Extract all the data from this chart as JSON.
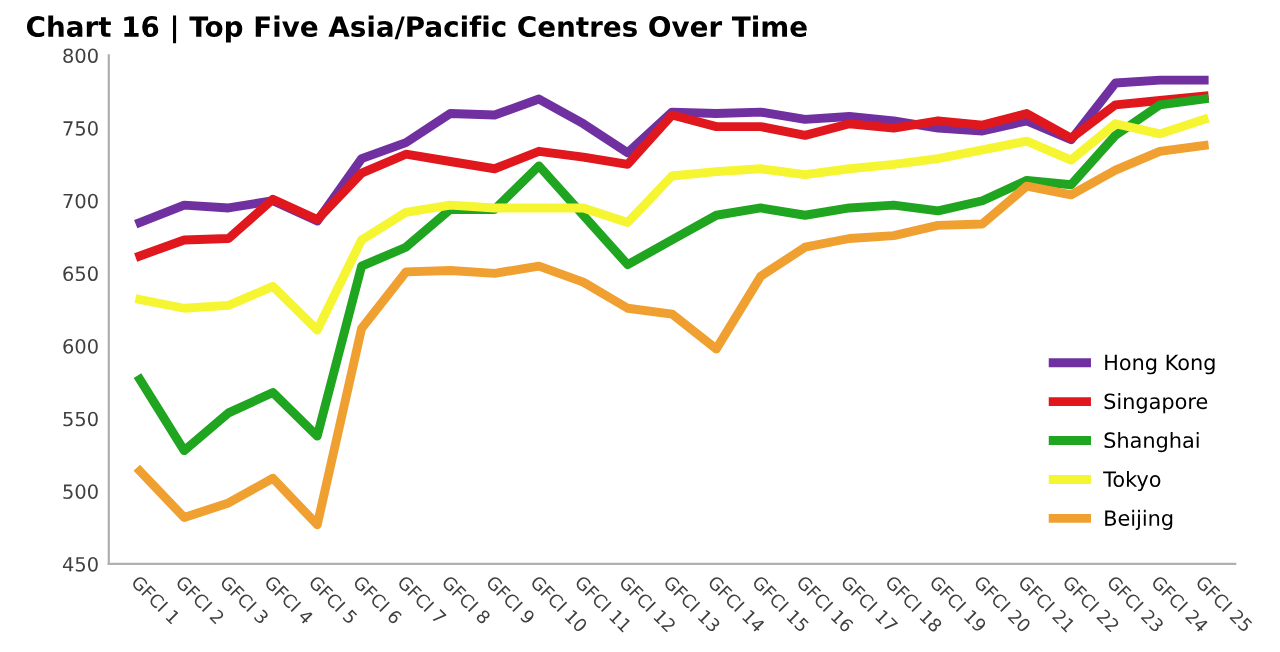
{
  "chart_data": {
    "type": "line",
    "title": "Chart 16 | Top Five Asia/Pacific Centres Over Time",
    "categories": [
      "GFCI 1",
      "GFCI 2",
      "GFCI 3",
      "GFCI 4",
      "GFCI 5",
      "GFCI 6",
      "GFCI 7",
      "GFCI 8",
      "GFCI 9",
      "GFCI 10",
      "GFCI 11",
      "GFCI 12",
      "GFCI 13",
      "GFCI 14",
      "GFCI 15",
      "GFCI 16",
      "GFCI 17",
      "GFCI 18",
      "GFCI 19",
      "GFCI 20",
      "GFCI 21",
      "GFCI 22",
      "GFCI 23",
      "GFCI 24",
      "GFCI 25"
    ],
    "series": [
      {
        "name": "Hong Kong",
        "color": "#7030a0",
        "values": [
          685,
          697,
          695,
          700,
          686,
          729,
          740,
          760,
          759,
          770,
          753,
          733,
          761,
          760,
          761,
          756,
          758,
          755,
          750,
          748,
          755,
          742,
          781,
          783,
          783
        ]
      },
      {
        "name": "Singapore",
        "color": "#e0181e",
        "values": [
          662,
          673,
          674,
          701,
          687,
          719,
          732,
          727,
          722,
          734,
          730,
          725,
          759,
          751,
          751,
          745,
          753,
          750,
          755,
          752,
          760,
          743,
          766,
          769,
          772
        ]
      },
      {
        "name": "Shanghai",
        "color": "#1fa51f",
        "values": [
          577,
          528,
          554,
          568,
          538,
          655,
          668,
          694,
          694,
          724,
          690,
          656,
          673,
          690,
          695,
          690,
          695,
          697,
          693,
          700,
          714,
          711,
          745,
          766,
          770
        ]
      },
      {
        "name": "Tokyo",
        "color": "#f5f532",
        "values": [
          632,
          626,
          628,
          641,
          611,
          673,
          692,
          697,
          695,
          695,
          695,
          685,
          717,
          720,
          722,
          718,
          722,
          725,
          729,
          735,
          741,
          728,
          753,
          746,
          756
        ]
      },
      {
        "name": "Beijing",
        "color": "#f0a030",
        "values": [
          514,
          482,
          492,
          509,
          477,
          612,
          651,
          652,
          650,
          655,
          644,
          626,
          622,
          598,
          648,
          668,
          674,
          676,
          683,
          684,
          710,
          704,
          721,
          734,
          738
        ]
      }
    ],
    "ylim": [
      450,
      800
    ],
    "yticks": [
      450,
      500,
      550,
      600,
      650,
      700,
      750,
      800
    ],
    "grid": false,
    "legend": "right",
    "line_style": "solid",
    "marker": "none"
  }
}
